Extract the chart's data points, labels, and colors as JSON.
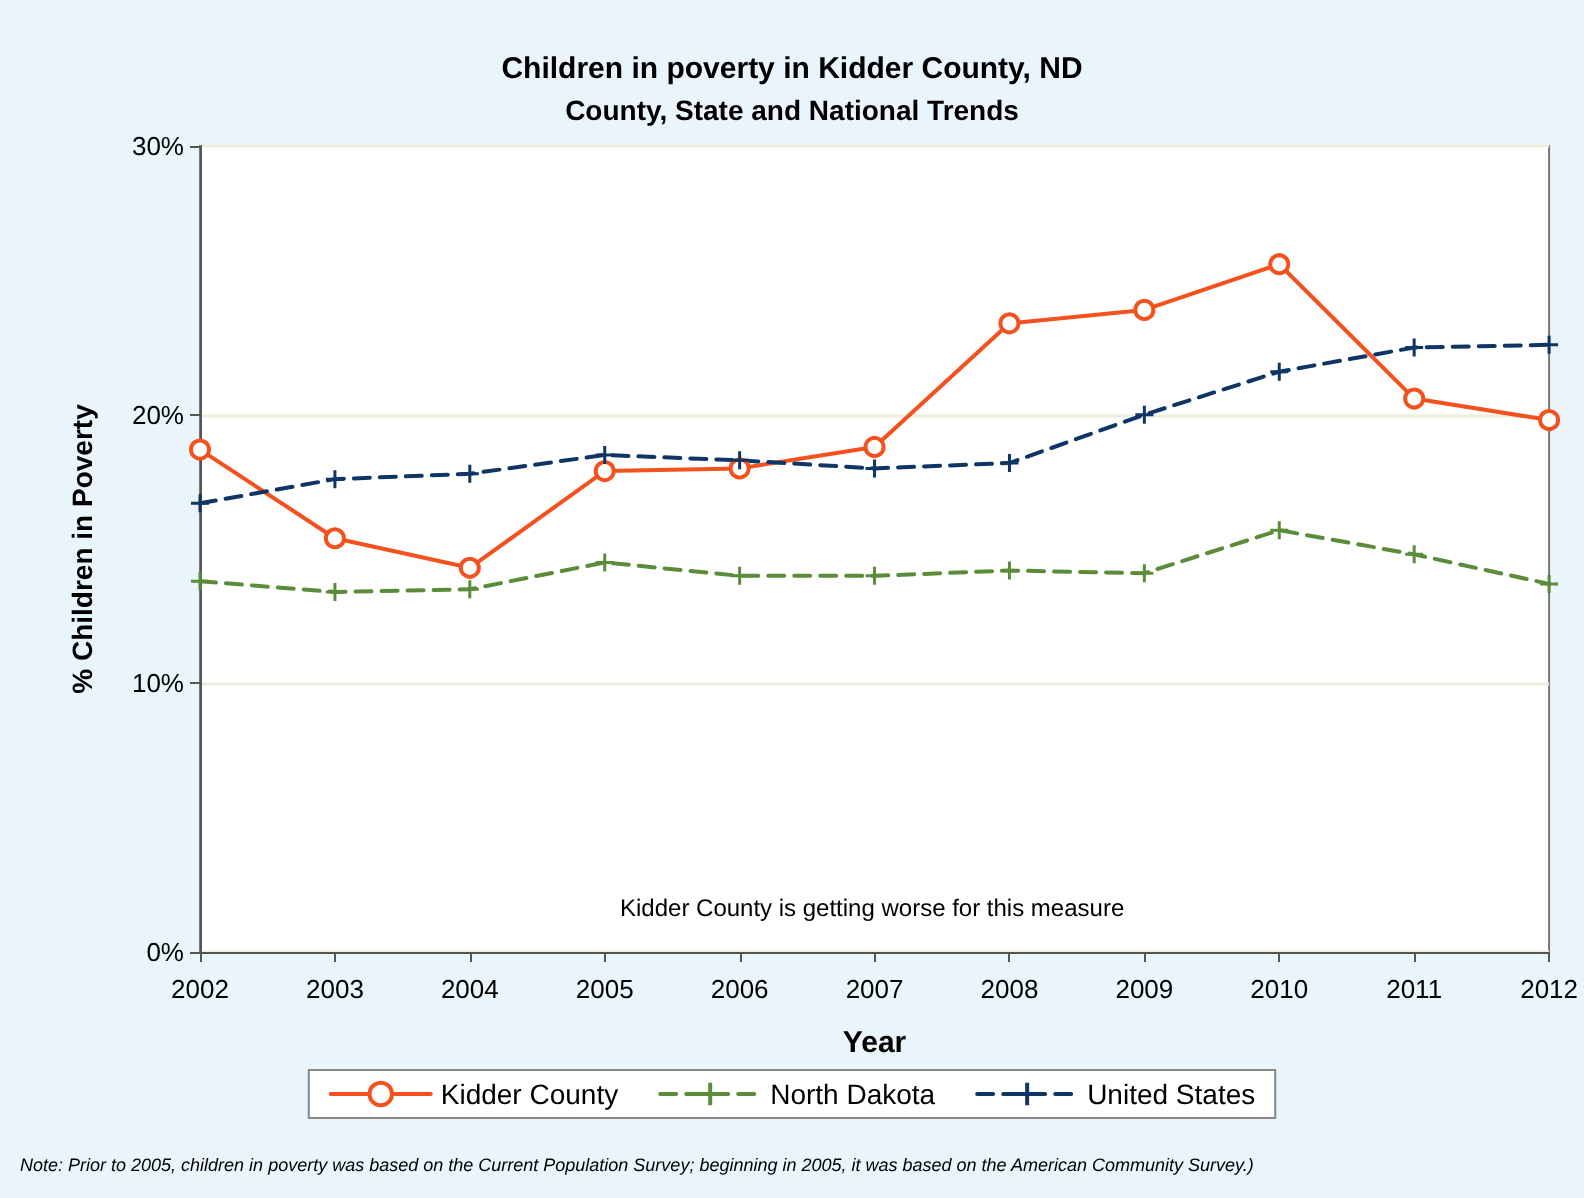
{
  "chart_data": {
    "type": "line",
    "title": "Children in poverty in Kidder County, ND",
    "subtitle": "County, State and National Trends",
    "xlabel": "Year",
    "ylabel": "% Children in Poverty",
    "x": [
      2002,
      2003,
      2004,
      2005,
      2006,
      2007,
      2008,
      2009,
      2010,
      2011,
      2012
    ],
    "xlim": [
      2002,
      2012
    ],
    "xticks": [
      2002,
      2003,
      2004,
      2005,
      2006,
      2007,
      2008,
      2009,
      2010,
      2011,
      2012
    ],
    "ylim": [
      0,
      30
    ],
    "yticks": [
      {
        "value": 0,
        "label": "0%"
      },
      {
        "value": 10,
        "label": "10%"
      },
      {
        "value": 20,
        "label": "20%"
      },
      {
        "value": 30,
        "label": "30%"
      }
    ],
    "grid": "y",
    "legend": "bottom",
    "series": [
      {
        "name": "Kidder County",
        "color": "#f4511e",
        "marker": "circle",
        "line_style": "solid",
        "values": [
          18.7,
          15.4,
          14.3,
          17.9,
          18.0,
          18.8,
          23.4,
          23.9,
          25.6,
          20.6,
          19.8
        ]
      },
      {
        "name": "North Dakota",
        "color": "#5b8c3a",
        "marker": "cross",
        "line_style": "dashed",
        "values": [
          13.8,
          13.4,
          13.5,
          14.5,
          14.0,
          14.0,
          14.2,
          14.1,
          15.7,
          14.8,
          13.7
        ]
      },
      {
        "name": "United States",
        "color": "#0f3565",
        "marker": "cross",
        "line_style": "dashed",
        "values": [
          16.7,
          17.6,
          17.8,
          18.5,
          18.3,
          18.0,
          18.2,
          20.0,
          21.6,
          22.5,
          22.6
        ]
      }
    ],
    "annotations": [
      "Kidder County is getting worse for this measure",
      "Note: Prior to 2005, children in poverty was based on the Current Population Survey; beginning in 2005, it was based on the American Community Survey.)"
    ]
  }
}
